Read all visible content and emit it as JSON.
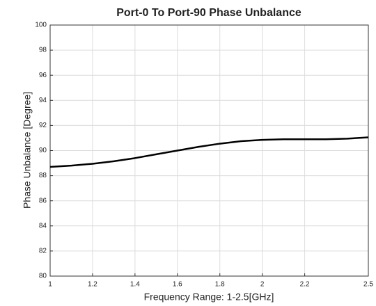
{
  "chart_data": {
    "type": "line",
    "title": "Port-0 To Port-90 Phase Unbalance",
    "x_label": "Frequency Range: 1-2.5[GHz]",
    "y_label": "Phase Unbalance [Degree]",
    "x": [
      1,
      1.1,
      1.2,
      1.3,
      1.4,
      1.5,
      1.6,
      1.7,
      1.8,
      1.9,
      2,
      2.1,
      2.2,
      2.3,
      2.4,
      2.5
    ],
    "series": [
      {
        "name": "Phase Unbalance",
        "color": "#000000",
        "values": [
          88.7,
          88.8,
          88.95,
          89.15,
          89.4,
          89.7,
          90.0,
          90.3,
          90.55,
          90.75,
          90.85,
          90.9,
          90.9,
          90.9,
          90.95,
          91.05
        ]
      }
    ],
    "xlim": [
      1,
      2.5
    ],
    "xticks": [
      1,
      1.2,
      1.4,
      1.6,
      1.8,
      2,
      2.2,
      2.5
    ],
    "ylim": [
      80,
      100
    ],
    "yticks": [
      80,
      82,
      84,
      86,
      88,
      90,
      92,
      94,
      96,
      98,
      100
    ],
    "grid": true
  }
}
